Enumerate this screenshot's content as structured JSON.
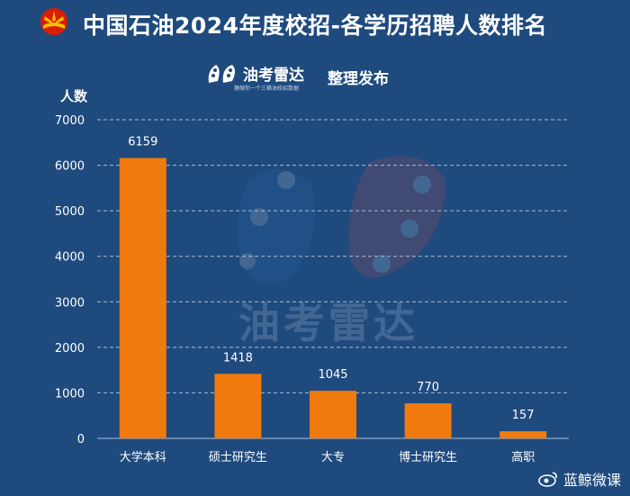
{
  "header": {
    "title": "中国石油2024年度校招-各学历招聘人数排名",
    "logo_icon": "petrochina-logo-icon",
    "brand_colors": {
      "red": "#d81e06",
      "yellow": "#f6c000"
    }
  },
  "publisher": {
    "brand": "油考雷达",
    "slogan": "猿缩你一个三桶油校招数据",
    "note": "整理发布",
    "icon": "oil-radar-logo-icon"
  },
  "watermark": {
    "text": "油考雷达"
  },
  "footer": {
    "brand": "蓝鲸微课",
    "icon": "weibo-icon"
  },
  "colors": {
    "background": "#1f4a7d",
    "bar": "#f07a0e",
    "text": "#ffffff",
    "grid": "#a9bdd6"
  },
  "chart_data": {
    "type": "bar",
    "ylabel": "人数",
    "xlabel": "",
    "ylim": [
      0,
      7000
    ],
    "yticks": [
      0,
      1000,
      2000,
      3000,
      4000,
      5000,
      6000,
      7000
    ],
    "grid": true,
    "categories": [
      "大学本科",
      "硕士研究生",
      "大专",
      "博士研究生",
      "高职"
    ],
    "values": [
      6159,
      1418,
      1045,
      770,
      157
    ]
  }
}
